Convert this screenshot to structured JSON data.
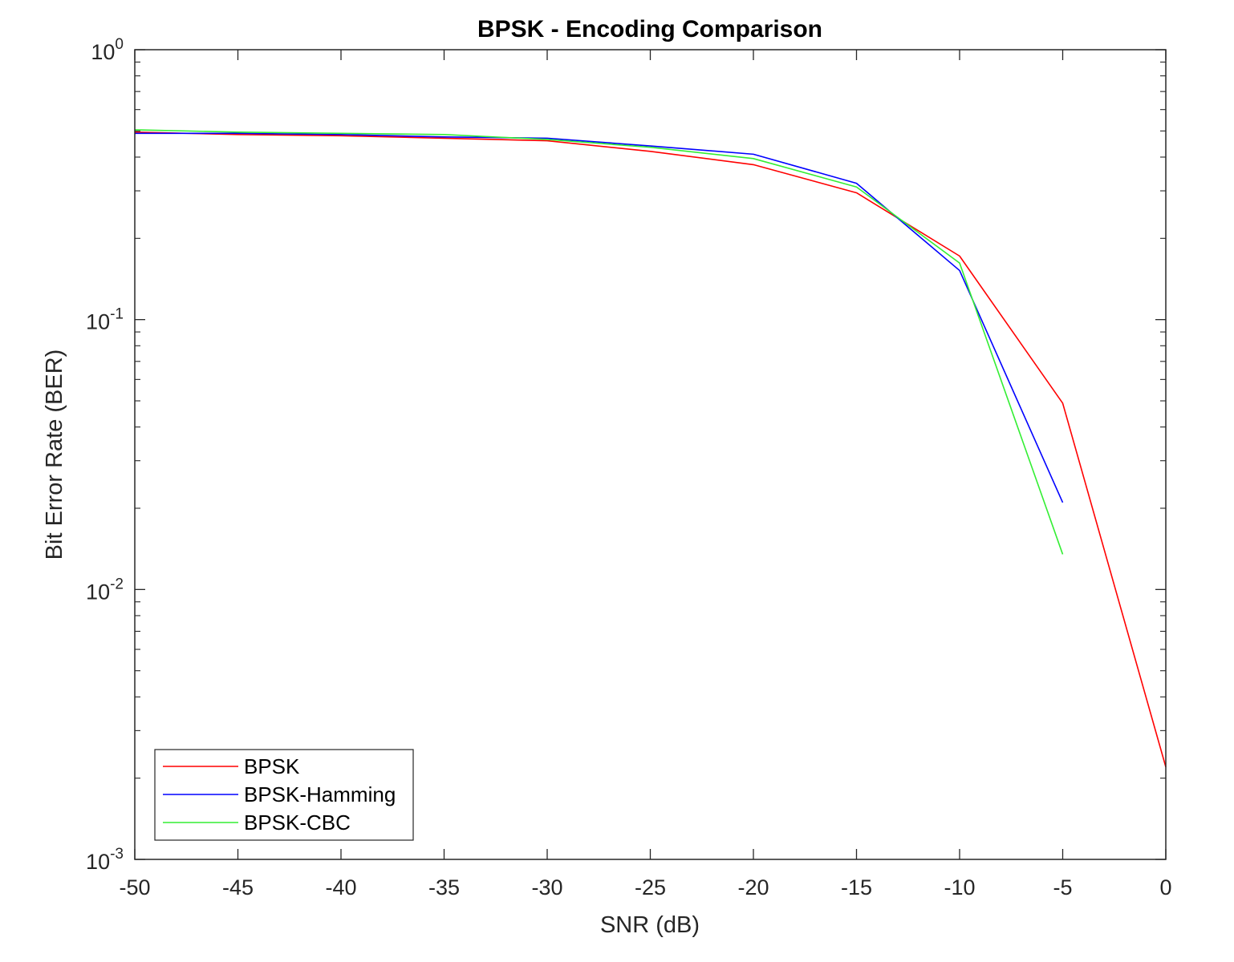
{
  "chart_data": {
    "type": "line",
    "title": "BPSK - Encoding Comparison",
    "xlabel": "SNR (dB)",
    "ylabel": "Bit Error Rate (BER)",
    "xscale": "linear",
    "yscale": "log",
    "xlim": [
      -50,
      0
    ],
    "ylim": [
      0.001,
      1
    ],
    "x_ticks": [
      -50,
      -45,
      -40,
      -35,
      -30,
      -25,
      -20,
      -15,
      -10,
      -5,
      0
    ],
    "x_tick_labels": [
      "-50",
      "-45",
      "-40",
      "-35",
      "-30",
      "-25",
      "-20",
      "-15",
      "-10",
      "-5",
      "0"
    ],
    "y_ticks": [
      {
        "value": 1,
        "base": "10",
        "exp": "0"
      },
      {
        "value": 0.1,
        "base": "10",
        "exp": "-1"
      },
      {
        "value": 0.01,
        "base": "10",
        "exp": "-2"
      },
      {
        "value": 0.001,
        "base": "10",
        "exp": "-3"
      }
    ],
    "grid": false,
    "legend_position": "bottom-left",
    "series": [
      {
        "name": "BPSK",
        "color": "#ff0000",
        "x": [
          -50,
          -45,
          -40,
          -35,
          -30,
          -25,
          -20,
          -15,
          -10,
          -5,
          0
        ],
        "values": [
          0.495,
          0.485,
          0.48,
          0.47,
          0.46,
          0.42,
          0.375,
          0.295,
          0.172,
          0.049,
          0.0022
        ]
      },
      {
        "name": "BPSK-Hamming",
        "color": "#0000ff",
        "x": [
          -50,
          -45,
          -40,
          -35,
          -30,
          -25,
          -20,
          -15,
          -10,
          -5
        ],
        "values": [
          0.49,
          0.49,
          0.485,
          0.475,
          0.47,
          0.44,
          0.41,
          0.32,
          0.152,
          0.021
        ]
      },
      {
        "name": "BPSK-CBC",
        "color": "#33ee33",
        "x": [
          -50,
          -45,
          -40,
          -35,
          -30,
          -25,
          -20,
          -15,
          -10,
          -5
        ],
        "values": [
          0.505,
          0.495,
          0.49,
          0.485,
          0.465,
          0.435,
          0.395,
          0.31,
          0.162,
          0.0135
        ]
      }
    ]
  }
}
